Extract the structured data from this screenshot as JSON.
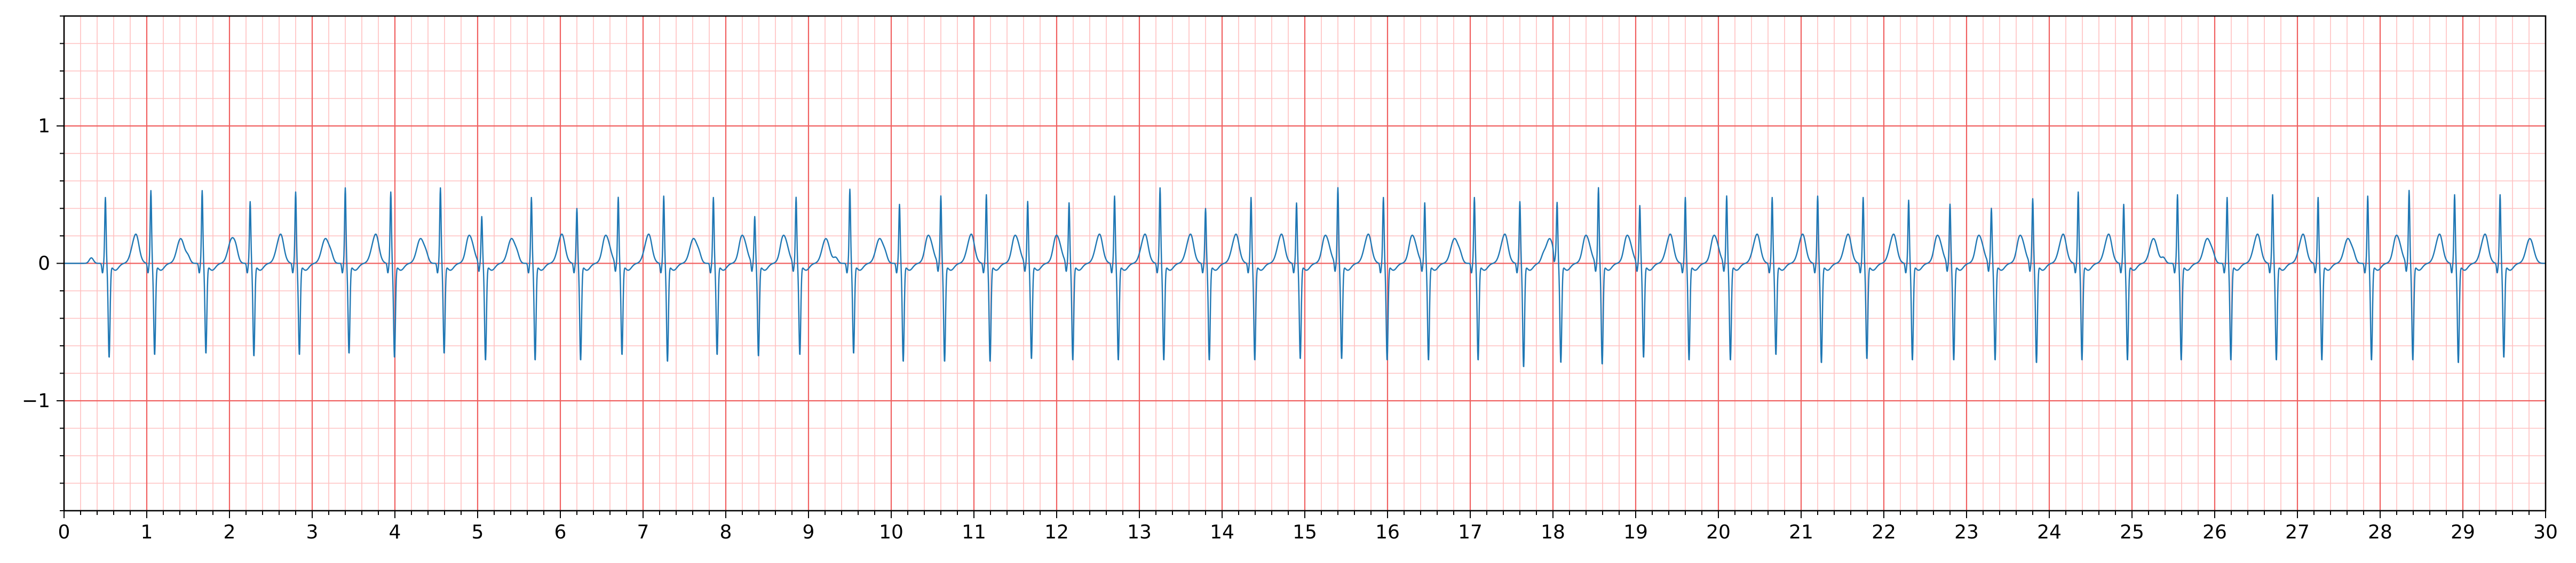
{
  "chart_data": {
    "type": "line",
    "title": "",
    "xlabel": "",
    "ylabel": "",
    "xlim": [
      0,
      30
    ],
    "ylim": [
      -1.8,
      1.8
    ],
    "x_ticks": [
      "0",
      "1",
      "2",
      "3",
      "4",
      "5",
      "6",
      "7",
      "8",
      "9",
      "10",
      "11",
      "12",
      "13",
      "14",
      "15",
      "16",
      "17",
      "18",
      "19",
      "20",
      "21",
      "22",
      "23",
      "24",
      "25",
      "26",
      "27",
      "28",
      "29",
      "30"
    ],
    "y_ticks": [
      {
        "value": 1,
        "label": "1"
      },
      {
        "value": 0,
        "label": "0"
      },
      {
        "value": -1,
        "label": "−1"
      }
    ],
    "grid": {
      "major": {
        "x_step": 1,
        "y_step": 1,
        "color": "#f06060"
      },
      "minor": {
        "x_step": 0.2,
        "y_step": 0.2,
        "color": "#ffc0c0"
      }
    },
    "series": [
      {
        "color": "#1f77b4",
        "beat_r_peak_times": [
          0.5,
          1.05,
          1.67,
          2.25,
          2.8,
          3.4,
          3.95,
          4.55,
          5.05,
          5.65,
          6.2,
          6.7,
          7.25,
          7.85,
          8.35,
          8.85,
          9.5,
          10.1,
          10.6,
          11.15,
          11.65,
          12.15,
          12.7,
          13.25,
          13.8,
          14.35,
          14.9,
          15.4,
          15.95,
          16.45,
          17.05,
          17.6,
          18.05,
          18.55,
          19.05,
          19.6,
          20.1,
          20.65,
          21.2,
          21.75,
          22.3,
          22.8,
          23.3,
          23.8,
          24.35,
          24.9,
          25.55,
          26.15,
          26.7,
          27.25,
          27.85,
          28.35,
          28.9,
          29.45
        ],
        "beat_r_amplitude": [
          0.48,
          0.53,
          0.53,
          0.45,
          0.52,
          0.55,
          0.52,
          0.55,
          0.34,
          0.48,
          0.4,
          0.48,
          0.49,
          0.48,
          0.34,
          0.48,
          0.54,
          0.43,
          0.49,
          0.5,
          0.45,
          0.44,
          0.49,
          0.55,
          0.4,
          0.48,
          0.44,
          0.55,
          0.48,
          0.44,
          0.48,
          0.45,
          0.42,
          0.55,
          0.42,
          0.48,
          0.49,
          0.48,
          0.49,
          0.48,
          0.46,
          0.43,
          0.4,
          0.47,
          0.52,
          0.43,
          0.5,
          0.48,
          0.5,
          0.48,
          0.49,
          0.53,
          0.5,
          0.5
        ],
        "beat_s_amplitude": [
          -0.68,
          -0.66,
          -0.65,
          -0.67,
          -0.66,
          -0.65,
          -0.68,
          -0.65,
          -0.7,
          -0.7,
          -0.7,
          -0.66,
          -0.71,
          -0.66,
          -0.67,
          -0.66,
          -0.65,
          -0.71,
          -0.71,
          -0.71,
          -0.69,
          -0.7,
          -0.7,
          -0.7,
          -0.7,
          -0.7,
          -0.69,
          -0.69,
          -0.7,
          -0.7,
          -0.7,
          -0.75,
          -0.72,
          -0.73,
          -0.68,
          -0.7,
          -0.7,
          -0.66,
          -0.72,
          -0.69,
          -0.7,
          -0.7,
          -0.7,
          -0.72,
          -0.7,
          -0.7,
          -0.7,
          -0.7,
          -0.7,
          -0.7,
          -0.7,
          -0.7,
          -0.72,
          -0.68
        ],
        "beat_t_amplitude": 0.18,
        "beat_p_amplitude": 0.04
      }
    ]
  }
}
